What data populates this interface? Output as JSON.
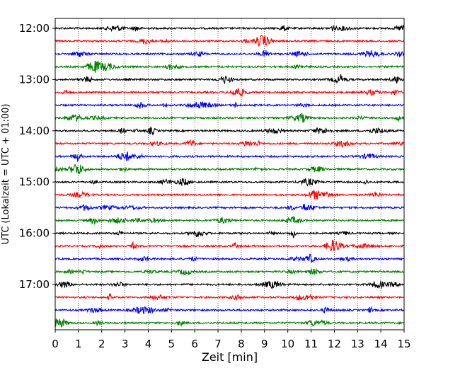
{
  "chart_data": {
    "type": "line",
    "xlabel": "Zeit  [min]",
    "ylabel": "UTC (Lokalzeit = UTC + 01:00)",
    "xlim": [
      0,
      15
    ],
    "x_ticks": [
      "0",
      "1",
      "2",
      "3",
      "4",
      "5",
      "6",
      "7",
      "8",
      "9",
      "10",
      "11",
      "12",
      "13",
      "14",
      "15"
    ],
    "y_tick_labels": [
      "12:00",
      "13:00",
      "14:00",
      "15:00",
      "16:00",
      "17:00"
    ],
    "grid": "vertical dotted lines at each minute",
    "trace_colors": [
      "#000000",
      "#ff0000",
      "#0000ff",
      "#008000"
    ],
    "traces": [
      {
        "start": "12:00",
        "color": "#000000"
      },
      {
        "start": "12:15",
        "color": "#ff0000"
      },
      {
        "start": "12:30",
        "color": "#0000ff"
      },
      {
        "start": "12:45",
        "color": "#008000"
      },
      {
        "start": "13:00",
        "color": "#000000"
      },
      {
        "start": "13:15",
        "color": "#ff0000"
      },
      {
        "start": "13:30",
        "color": "#0000ff"
      },
      {
        "start": "13:45",
        "color": "#008000"
      },
      {
        "start": "14:00",
        "color": "#000000"
      },
      {
        "start": "14:15",
        "color": "#ff0000"
      },
      {
        "start": "14:30",
        "color": "#0000ff"
      },
      {
        "start": "14:45",
        "color": "#008000"
      },
      {
        "start": "15:00",
        "color": "#000000"
      },
      {
        "start": "15:15",
        "color": "#ff0000"
      },
      {
        "start": "15:30",
        "color": "#0000ff"
      },
      {
        "start": "15:45",
        "color": "#008000"
      },
      {
        "start": "16:00",
        "color": "#000000"
      },
      {
        "start": "16:15",
        "color": "#ff0000"
      },
      {
        "start": "16:30",
        "color": "#0000ff"
      },
      {
        "start": "16:45",
        "color": "#008000"
      },
      {
        "start": "17:00",
        "color": "#000000"
      },
      {
        "start": "17:15",
        "color": "#ff0000"
      },
      {
        "start": "17:30",
        "color": "#0000ff"
      },
      {
        "start": "17:45",
        "color": "#008000"
      }
    ]
  }
}
